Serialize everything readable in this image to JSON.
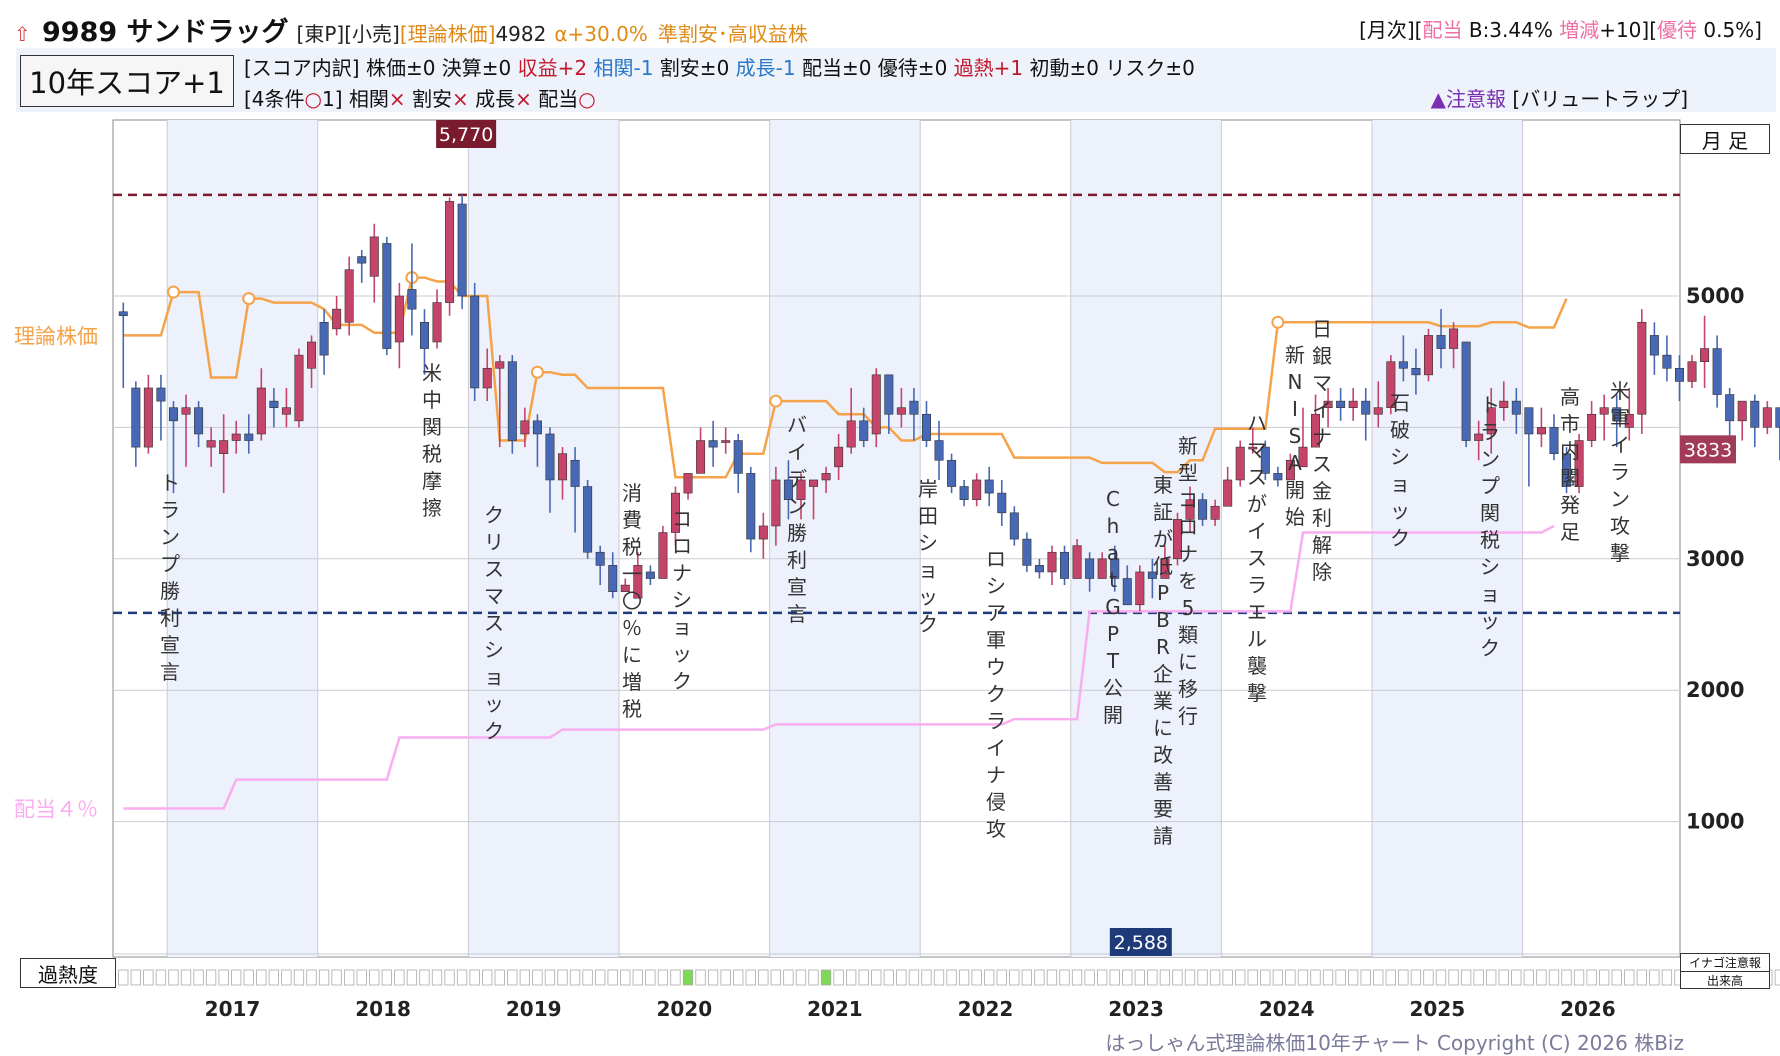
{
  "header": {
    "icon": "up-arrow-icon",
    "title": "9989 サンドラッグ",
    "market_tags": "[東P][小売]",
    "theory_price_label": "[理論株価]",
    "theory_price_value": "4982",
    "alpha": "α+30.0%",
    "category": "準割安･高収益株",
    "right_monthly": "[月次][",
    "right_dividend": "配当",
    "right_b": " B:3.44% ",
    "right_change": "増減",
    "right_change_val": "+10][",
    "right_yutai": "優待",
    "right_yutai_val": " 0.5%]"
  },
  "score": {
    "box_label": "10年スコア+1",
    "breakdown_prefix": "[スコア内訳] 株価±0 決算±0 ",
    "profit": "収益+2",
    "corr": "相関-1",
    "cheap": " 割安±0 ",
    "growth": "成長-1",
    "rest1": " 配当±0 優待±0 ",
    "overheat": "過熱+1",
    "rest2": " 初動±0 リスク±0",
    "conditions_prefix": "[4条件",
    "conditions_mark": "○",
    "conditions_count": "1] 相関",
    "cond_corr_mark": "×",
    "cond_cheap": " 割安",
    "cond_cheap_mark": "×",
    "cond_growth": " 成長",
    "cond_growth_mark": "×",
    "cond_div": " 配当",
    "cond_div_mark": "○",
    "warning": "▲注意報",
    "warning_detail": " [バリュートラップ]"
  },
  "controls": {
    "period_button": "月 足",
    "overheat_label": "過熱度",
    "inago_label": "イナゴ注意報",
    "volume_label": "出来高"
  },
  "footer": {
    "copyright": "はっしゃん式理論株価10年チャート Copyright (C) 2026 株Biz"
  },
  "colors": {
    "up": "#c4446a",
    "down": "#4769b5",
    "theory_line": "#f5a34a",
    "dividend_line": "#f9aef0",
    "high_line": "#7a1a2f",
    "low_line": "#1f3a78"
  },
  "chart_data": {
    "type": "candlestick",
    "x_unit": "month",
    "y_ticks": [
      1000,
      2000,
      3000,
      5000
    ],
    "ylim": [
      0,
      6000
    ],
    "x_labels": [
      "2017",
      "2018",
      "2019",
      "2020",
      "2021",
      "2022",
      "2023",
      "2024",
      "2025",
      "2026"
    ],
    "high_marker": {
      "value": 5770,
      "label": "5,770"
    },
    "low_marker": {
      "value": 2588,
      "label": "2,588"
    },
    "current_price": {
      "value": 3833,
      "label": "3833"
    },
    "series_labels": {
      "theory": "理論株価",
      "dividend": "配当４％"
    },
    "theory_price_x": [
      "2016-09",
      "2016-10",
      "2016-11",
      "2016-12",
      "2017-01",
      "2017-02",
      "2017-03",
      "2017-04",
      "2017-05",
      "2017-06",
      "2017-07",
      "2017-08",
      "2017-09",
      "2017-10",
      "2017-11",
      "2017-12",
      "2018-01",
      "2018-02",
      "2018-03",
      "2018-04",
      "2018-05",
      "2018-06",
      "2018-07",
      "2018-08",
      "2018-09",
      "2018-10",
      "2018-11",
      "2018-12",
      "2019-01",
      "2019-02",
      "2019-03",
      "2019-04",
      "2019-05",
      "2019-06",
      "2019-07",
      "2019-08",
      "2019-09",
      "2019-10",
      "2019-11",
      "2019-12",
      "2020-01",
      "2020-02",
      "2020-03",
      "2020-04",
      "2020-05",
      "2020-06",
      "2020-07",
      "2020-08",
      "2020-09",
      "2020-10",
      "2020-11",
      "2020-12",
      "2021-01",
      "2021-02",
      "2021-03",
      "2021-04",
      "2021-05",
      "2021-06",
      "2021-07",
      "2021-08",
      "2021-09",
      "2021-10",
      "2021-11",
      "2021-12",
      "2022-01",
      "2022-02",
      "2022-03",
      "2022-04",
      "2022-05",
      "2022-06",
      "2022-07",
      "2022-08",
      "2022-09",
      "2022-10",
      "2022-11",
      "2022-12",
      "2023-01",
      "2023-02",
      "2023-03",
      "2023-04",
      "2023-05",
      "2023-06",
      "2023-07",
      "2023-08",
      "2023-09",
      "2023-10",
      "2023-11",
      "2023-12",
      "2024-01",
      "2024-02",
      "2024-03",
      "2024-04",
      "2024-05",
      "2024-06",
      "2024-07",
      "2024-08",
      "2024-09",
      "2024-10",
      "2024-11",
      "2024-12",
      "2025-01",
      "2025-02",
      "2025-03",
      "2025-04",
      "2025-05",
      "2025-06",
      "2025-07",
      "2025-08",
      "2025-09",
      "2025-10",
      "2025-11",
      "2025-12",
      "2026-01",
      "2026-02",
      "2026-03"
    ],
    "theory_price_values": [
      4700,
      4700,
      4700,
      4700,
      5030,
      5030,
      5030,
      4380,
      4380,
      4380,
      4980,
      4980,
      4950,
      4950,
      4950,
      4950,
      4900,
      4780,
      4780,
      4780,
      4720,
      4720,
      4720,
      5140,
      5140,
      5110,
      5110,
      5000,
      5000,
      5000,
      3900,
      3900,
      3900,
      4420,
      4420,
      4400,
      4400,
      4300,
      4300,
      4300,
      4300,
      4300,
      4300,
      4300,
      3620,
      3620,
      3620,
      3620,
      3620,
      3800,
      3800,
      3800,
      4200,
      4200,
      4200,
      4200,
      4200,
      4100,
      4100,
      4100,
      4000,
      4000,
      3900,
      3900,
      3950,
      3950,
      3950,
      3950,
      3950,
      3950,
      3950,
      3770,
      3770,
      3770,
      3770,
      3770,
      3770,
      3770,
      3730,
      3730,
      3730,
      3730,
      3730,
      3660,
      3660,
      3750,
      3750,
      3990,
      3990,
      3990,
      3990,
      3990,
      4800,
      4800,
      4800,
      4800,
      4800,
      4800,
      4800,
      4800,
      4800,
      4800,
      4800,
      4800,
      4800,
      4770,
      4770,
      4770,
      4770,
      4800,
      4800,
      4800,
      4760,
      4760,
      4760,
      4980
    ],
    "dividend_values": [
      1100,
      1100,
      1100,
      1100,
      1100,
      1100,
      1100,
      1100,
      1100,
      1320,
      1320,
      1320,
      1320,
      1320,
      1320,
      1320,
      1320,
      1320,
      1320,
      1320,
      1320,
      1320,
      1640,
      1640,
      1640,
      1640,
      1640,
      1640,
      1640,
      1640,
      1640,
      1640,
      1640,
      1640,
      1640,
      1700,
      1700,
      1700,
      1700,
      1700,
      1700,
      1700,
      1700,
      1700,
      1700,
      1700,
      1700,
      1700,
      1700,
      1700,
      1700,
      1700,
      1740,
      1740,
      1740,
      1740,
      1740,
      1740,
      1740,
      1740,
      1740,
      1740,
      1740,
      1740,
      1740,
      1740,
      1740,
      1740,
      1740,
      1740,
      1740,
      1780,
      1780,
      1780,
      1780,
      1780,
      1780,
      2600,
      2600,
      2600,
      2600,
      2600,
      2600,
      2600,
      2600,
      2600,
      2600,
      2600,
      2600,
      2600,
      2600,
      2600,
      2600,
      2600,
      3200,
      3200,
      3200,
      3200,
      3200,
      3200,
      3200,
      3200,
      3200,
      3200,
      3200,
      3200,
      3200,
      3200,
      3200,
      3200,
      3200,
      3200,
      3200,
      3200,
      3250
    ],
    "candles": [
      [
        4880,
        4850,
        4950,
        4300
      ],
      [
        4300,
        3850,
        4350,
        3700
      ],
      [
        3850,
        4300,
        4400,
        3800
      ],
      [
        4300,
        4200,
        4400,
        3900
      ],
      [
        4150,
        4050,
        4200,
        3500
      ],
      [
        4100,
        4150,
        4250,
        3700
      ],
      [
        4150,
        3950,
        4200,
        3850
      ],
      [
        3850,
        3900,
        4000,
        3700
      ],
      [
        3800,
        3900,
        4100,
        3500
      ],
      [
        3900,
        3950,
        4050,
        3800
      ],
      [
        3950,
        3900,
        4100,
        3800
      ],
      [
        3950,
        4300,
        4450,
        3900
      ],
      [
        4200,
        4150,
        4300,
        4000
      ],
      [
        4100,
        4150,
        4300,
        4000
      ],
      [
        4050,
        4550,
        4600,
        4000
      ],
      [
        4450,
        4650,
        4700,
        4300
      ],
      [
        4800,
        4550,
        4900,
        4400
      ],
      [
        4750,
        4900,
        5000,
        4700
      ],
      [
        4800,
        5200,
        5300,
        4700
      ],
      [
        5300,
        5250,
        5350,
        5100
      ],
      [
        5150,
        5450,
        5550,
        4950
      ],
      [
        5400,
        4600,
        5450,
        4550
      ],
      [
        4650,
        5000,
        5100,
        4450
      ],
      [
        5050,
        4900,
        5400,
        4700
      ],
      [
        4800,
        4600,
        4900,
        4400
      ],
      [
        4650,
        4950,
        5050,
        4600
      ],
      [
        4950,
        5720,
        5750,
        4850
      ],
      [
        5700,
        5000,
        5770,
        4900
      ],
      [
        5000,
        4300,
        5100,
        4200
      ],
      [
        4300,
        4450,
        4600,
        4200
      ],
      [
        4450,
        4500,
        4550,
        3850
      ],
      [
        4500,
        3900,
        4550,
        3800
      ],
      [
        3950,
        4050,
        4150,
        3850
      ],
      [
        4050,
        3950,
        4100,
        3700
      ],
      [
        3950,
        3600,
        4000,
        3350
      ],
      [
        3600,
        3800,
        3850,
        3450
      ],
      [
        3750,
        3550,
        3850,
        3200
      ],
      [
        3550,
        3050,
        3600,
        3000
      ],
      [
        3050,
        2950,
        3100,
        2800
      ],
      [
        2950,
        2750,
        3050,
        2700
      ],
      [
        2750,
        2800,
        2850,
        2750
      ],
      [
        2700,
        2950,
        3050,
        2850
      ],
      [
        2900,
        2850,
        2950,
        2800
      ],
      [
        2850,
        3200,
        3250,
        3000
      ],
      [
        3200,
        3500,
        3550,
        3100
      ],
      [
        3500,
        3650,
        3650,
        3450
      ],
      [
        3650,
        3900,
        4000,
        3750
      ],
      [
        3900,
        3850,
        4050,
        3700
      ],
      [
        3900,
        3900,
        4000,
        3800
      ],
      [
        3900,
        3650,
        3950,
        3500
      ],
      [
        3650,
        3150,
        3700,
        3050
      ],
      [
        3150,
        3250,
        3350,
        3000
      ],
      [
        3250,
        3600,
        3700,
        3100
      ],
      [
        3600,
        3450,
        3750,
        3300
      ],
      [
        3450,
        3600,
        3650,
        3300
      ],
      [
        3550,
        3600,
        3600,
        3300
      ],
      [
        3600,
        3650,
        3700,
        3500
      ],
      [
        3700,
        3850,
        3950,
        3600
      ],
      [
        3850,
        4050,
        4300,
        3800
      ],
      [
        4050,
        3900,
        4150,
        3850
      ],
      [
        3950,
        4400,
        4450,
        3850
      ],
      [
        4400,
        4100,
        4400,
        3950
      ],
      [
        4100,
        4150,
        4300,
        4000
      ],
      [
        4200,
        4100,
        4300,
        3900
      ],
      [
        4100,
        3900,
        4200,
        3850
      ],
      [
        3900,
        3750,
        4050,
        3600
      ],
      [
        3750,
        3550,
        3800,
        3500
      ],
      [
        3550,
        3450,
        3600,
        3400
      ],
      [
        3450,
        3600,
        3650,
        3400
      ],
      [
        3600,
        3500,
        3700,
        3400
      ],
      [
        3500,
        3350,
        3600,
        3250
      ],
      [
        3350,
        3150,
        3400,
        3100
      ],
      [
        3150,
        2950,
        3200,
        2900
      ],
      [
        2950,
        2900,
        3000,
        2850
      ],
      [
        2900,
        3050,
        3100,
        2800
      ],
      [
        3050,
        2850,
        3100,
        2800
      ],
      [
        2850,
        3100,
        3150,
        2900
      ],
      [
        3000,
        2850,
        3050,
        2750
      ],
      [
        2850,
        3000,
        3050,
        2850
      ],
      [
        3000,
        2850,
        3100,
        2750
      ],
      [
        2850,
        2650,
        2950,
        2650
      ],
      [
        2650,
        2900,
        2950,
        2600
      ],
      [
        2900,
        2850,
        3000,
        2700
      ],
      [
        2850,
        3000,
        3100,
        2850
      ],
      [
        3000,
        3300,
        3350,
        2950
      ],
      [
        3300,
        3450,
        3550,
        3200
      ],
      [
        3450,
        3300,
        3500,
        3250
      ],
      [
        3300,
        3400,
        3450,
        3250
      ],
      [
        3400,
        3600,
        3700,
        3450
      ],
      [
        3600,
        3850,
        3900,
        3550
      ],
      [
        3850,
        3850,
        4000,
        3800
      ],
      [
        3850,
        3650,
        3900,
        3600
      ],
      [
        3650,
        3600,
        3700,
        3550
      ],
      [
        3600,
        3750,
        3800,
        3600
      ],
      [
        3700,
        3850,
        4150,
        3700
      ],
      [
        3850,
        4100,
        4250,
        3950
      ],
      [
        4150,
        4200,
        4300,
        4000
      ],
      [
        4200,
        4150,
        4300,
        4050
      ],
      [
        4150,
        4200,
        4300,
        4050
      ],
      [
        4200,
        4100,
        4300,
        3900
      ],
      [
        4100,
        4150,
        4350,
        4000
      ],
      [
        4150,
        4500,
        4550,
        4100
      ],
      [
        4500,
        4450,
        4700,
        4350
      ],
      [
        4450,
        4400,
        4600,
        4250
      ],
      [
        4400,
        4700,
        4750,
        4350
      ],
      [
        4700,
        4600,
        4900,
        4450
      ],
      [
        4600,
        4750,
        4800,
        4450
      ],
      [
        4650,
        3900,
        4650,
        3850
      ],
      [
        3900,
        3950,
        4050,
        3750
      ],
      [
        3950,
        4150,
        4300,
        3800
      ],
      [
        4150,
        4200,
        4350,
        4050
      ],
      [
        4200,
        4100,
        4300,
        3950
      ],
      [
        4150,
        3950,
        4150,
        3550
      ],
      [
        3950,
        4000,
        4150,
        3850
      ],
      [
        4000,
        3800,
        4100,
        3750
      ],
      [
        3800,
        3550,
        3850,
        3500
      ],
      [
        3550,
        3900,
        3950,
        3500
      ],
      [
        3900,
        4100,
        4200,
        3850
      ],
      [
        4100,
        4150,
        4250,
        3900
      ],
      [
        4150,
        4050,
        4250,
        3850
      ],
      [
        4000,
        4100,
        4300,
        3900
      ],
      [
        4100,
        4800,
        4900,
        3950
      ],
      [
        4700,
        4550,
        4800,
        4400
      ],
      [
        4550,
        4450,
        4700,
        4350
      ],
      [
        4450,
        4350,
        4550,
        4200
      ],
      [
        4350,
        4500,
        4550,
        4300
      ],
      [
        4500,
        4600,
        4850,
        4300
      ],
      [
        4600,
        4250,
        4700,
        4150
      ],
      [
        4250,
        4050,
        4300,
        3900
      ],
      [
        4050,
        4200,
        4200,
        3900
      ],
      [
        4200,
        4000,
        4250,
        3850
      ],
      [
        4000,
        4150,
        4200,
        3950
      ],
      [
        4150,
        4000,
        4150,
        3750
      ],
      [
        4000,
        4050,
        4150,
        3800
      ],
      [
        4050,
        3950,
        4050,
        3700
      ],
      [
        3950,
        3800,
        4000,
        3650
      ],
      [
        3800,
        3700,
        3850,
        3600
      ],
      [
        3700,
        3650,
        3850,
        3500
      ],
      [
        3650,
        3833,
        3900,
        3550
      ]
    ],
    "events": [
      {
        "label": "トランプ勝利宣言"
      },
      {
        "label": "米中関税摩擦"
      },
      {
        "label": "クリスマスショック"
      },
      {
        "label": "消費税一〇％に増税"
      },
      {
        "label": "コロナショック"
      },
      {
        "label": "バイデン勝利宣言"
      },
      {
        "label": "岸田ショック"
      },
      {
        "label": "ロシア軍ウクライナ侵攻"
      },
      {
        "label": "ChatGPT公開"
      },
      {
        "label": "東証が低PBR企業に改善要請"
      },
      {
        "label": "新型コロナを5類に移行"
      },
      {
        "label": "ハマスがイスラエル襲撃"
      },
      {
        "label": "新NISA開始"
      },
      {
        "label": "日銀マイナス金利解除"
      },
      {
        "label": "石破ショック"
      },
      {
        "label": "トランプ関税ショック"
      },
      {
        "label": "高市内閣発足"
      },
      {
        "label": "米軍イラン攻撃"
      }
    ],
    "overheat_green_months": [
      "2020-09",
      "2021-05"
    ]
  }
}
